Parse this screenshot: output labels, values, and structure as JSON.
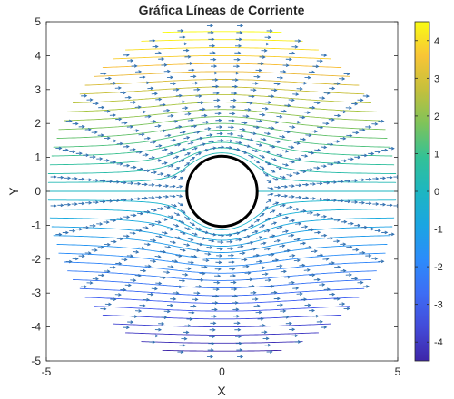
{
  "chart_data": {
    "type": "streamline",
    "title": "Gráfica Líneas de Corriente",
    "xlabel": "X",
    "ylabel": "Y",
    "xlim": [
      -5,
      5
    ],
    "ylim": [
      -5,
      5
    ],
    "xticks": [
      -5,
      0,
      5
    ],
    "yticks": [
      -5,
      -4,
      -3,
      -2,
      -1,
      0,
      1,
      2,
      3,
      4,
      5
    ],
    "xtick_labels": [
      "-5",
      "0",
      "5"
    ],
    "ytick_labels": [
      "-5",
      "-4",
      "-3",
      "-2",
      "-1",
      "0",
      "1",
      "2",
      "3",
      "4",
      "5"
    ],
    "grid": false,
    "domain_radius": 5,
    "cylinder": {
      "center": [
        0,
        0
      ],
      "radius": 1,
      "color": "#000000"
    },
    "flow": {
      "uniform_speed": 1,
      "cylinder_radius": 1
    },
    "streamline_levels": [
      -4.5,
      -4.25,
      -4.0,
      -3.75,
      -3.5,
      -3.25,
      -3.0,
      -2.75,
      -2.5,
      -2.25,
      -2.0,
      -1.75,
      -1.5,
      -1.25,
      -1.0,
      -0.75,
      -0.5,
      -0.25,
      0.0,
      0.25,
      0.5,
      0.75,
      1.0,
      1.25,
      1.5,
      1.75,
      2.0,
      2.25,
      2.5,
      2.75,
      3.0,
      3.25,
      3.5,
      3.75,
      4.0,
      4.25,
      4.5
    ],
    "quiver": {
      "rays": 36,
      "radii": [
        1.3,
        1.5,
        1.7,
        1.9,
        2.1,
        2.3,
        2.5,
        2.7,
        2.9,
        3.1,
        3.3,
        3.5,
        3.7,
        3.9,
        4.1,
        4.3,
        4.5,
        4.7,
        4.9
      ],
      "color": "#2f6fb0"
    },
    "colorbar": {
      "range": [
        -4.5,
        4.5
      ],
      "ticks": [
        -4,
        -3,
        -2,
        -1,
        0,
        1,
        2,
        3,
        4
      ],
      "tick_labels": [
        "-4",
        "-3",
        "-2",
        "-1",
        "0",
        "1",
        "2",
        "3",
        "4"
      ],
      "colormap": "parula"
    }
  }
}
